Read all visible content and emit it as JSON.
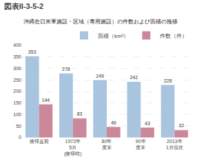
{
  "chart_data": {
    "type": "bar",
    "title": "図表II-3-5-2",
    "subtitle": "沖縄在日米軍施設・区域（専用施設）の件数および面積の推移",
    "categories": [
      "復帰直前",
      "1972年\n5月\n(復帰時)",
      "80年\n度末",
      "90年\n度末",
      "2013年\n1月現在"
    ],
    "series": [
      {
        "name": "面積（km²）",
        "color": "#a8c4de",
        "values": [
          353,
          278,
          249,
          242,
          228
        ]
      },
      {
        "name": "件数（件）",
        "color": "#cc8899",
        "values": [
          144,
          83,
          46,
          43,
          32
        ]
      }
    ],
    "ylim": [
      0,
      400
    ],
    "yticks": [
      0,
      50,
      100,
      150,
      200,
      250,
      300,
      350,
      400
    ],
    "grid": true,
    "legend": "upper right",
    "data_labels": true
  }
}
